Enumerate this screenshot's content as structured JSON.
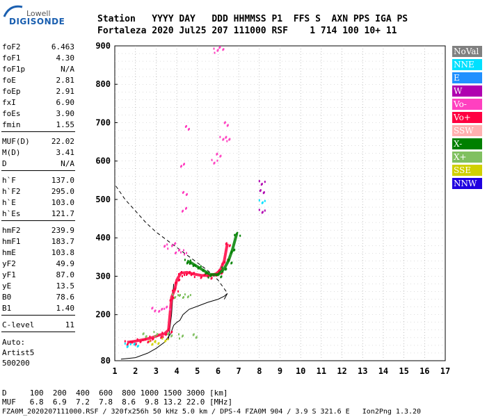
{
  "logo": {
    "brand": "Lowell",
    "product": "DIGISONDE"
  },
  "header": {
    "line1": "Station   YYYY DAY   DDD HHMMSS P1  FFS S  AXN PPS IGA PS",
    "line2": "Fortaleza 2020 Jul25 207 111000 RSF    1 714 100 10+ 11"
  },
  "params": [
    {
      "label": "foF2",
      "value": "6.463"
    },
    {
      "label": "foF1",
      "value": "4.30"
    },
    {
      "label": "foF1p",
      "value": "N/A"
    },
    {
      "label": "foE",
      "value": "2.81"
    },
    {
      "label": "foEp",
      "value": "2.91"
    },
    {
      "label": "fxI",
      "value": "6.90"
    },
    {
      "label": "foEs",
      "value": "3.90"
    },
    {
      "label": "fmin",
      "value": "1.55"
    },
    {
      "label": "MUF(D)",
      "value": "22.02"
    },
    {
      "label": "M(D)",
      "value": "3.41"
    },
    {
      "label": "D",
      "value": "N/A"
    },
    {
      "label": "h`F",
      "value": "137.0"
    },
    {
      "label": "h`F2",
      "value": "295.0"
    },
    {
      "label": "h`E",
      "value": "103.0"
    },
    {
      "label": "h`Es",
      "value": "121.7"
    },
    {
      "label": "hmF2",
      "value": "239.9"
    },
    {
      "label": "hmF1",
      "value": "183.7"
    },
    {
      "label": "hmE",
      "value": "103.8"
    },
    {
      "label": "yF2",
      "value": "49.9"
    },
    {
      "label": "yF1",
      "value": "87.0"
    },
    {
      "label": "yE",
      "value": "13.5"
    },
    {
      "label": "B0",
      "value": "78.6"
    },
    {
      "label": "B1",
      "value": "1.40"
    },
    {
      "label": "C-level",
      "value": "11"
    }
  ],
  "auto": {
    "line1": "Auto:",
    "line2": "Artist5",
    "line3": "500200"
  },
  "legend": [
    {
      "label": "NoVal",
      "color": "#808080",
      "text": "#ffffff"
    },
    {
      "label": "NNE",
      "color": "#00e0ff",
      "text": "#ffffff"
    },
    {
      "label": "E",
      "color": "#2090ff",
      "text": "#ffffff"
    },
    {
      "label": "W",
      "color": "#b000b0",
      "text": "#ffffff"
    },
    {
      "label": "Vo-",
      "color": "#ff40c0",
      "text": "#ffffff"
    },
    {
      "label": "Vo+",
      "color": "#ff0040",
      "text": "#ffffff"
    },
    {
      "label": "SSW",
      "color": "#ffb0b0",
      "text": "#ffffff"
    },
    {
      "label": "X-",
      "color": "#008000",
      "text": "#ffffff"
    },
    {
      "label": "X+",
      "color": "#80c060",
      "text": "#ffffff"
    },
    {
      "label": "SSE",
      "color": "#d0d000",
      "text": "#ffffff"
    },
    {
      "label": "NNW",
      "color": "#2000e0",
      "text": "#ffffff"
    }
  ],
  "bottom": {
    "line1": "D     100  200  400  600  800 1000 1500 3000 [km]",
    "line2": "MUF   6.8  6.9  7.2  7.8  8.6  9.8 13.2 22.0 [MHz]",
    "line3": "FZA0M_2020207111000.RSF / 320fx256h 50 kHz 5.0 km / DPS-4 FZA0M 904 / 3.9 S 321.6 E   Ion2Png 1.3.20"
  },
  "chart_data": {
    "type": "scatter",
    "x": {
      "min": 1,
      "max": 17,
      "ticks": [
        1,
        2,
        3,
        4,
        5,
        6,
        7,
        8,
        9,
        10,
        11,
        12,
        13,
        14,
        15,
        16,
        17
      ],
      "label": ""
    },
    "y": {
      "min": 80,
      "max": 900,
      "ticks": [
        80,
        200,
        300,
        400,
        500,
        600,
        700,
        800,
        900
      ],
      "label": ""
    },
    "grid": true,
    "profile_solid": [
      [
        1.3,
        84
      ],
      [
        2.0,
        88
      ],
      [
        2.6,
        100
      ],
      [
        3.0,
        112
      ],
      [
        3.4,
        128
      ],
      [
        3.7,
        150
      ],
      [
        3.85,
        172
      ],
      [
        4.0,
        180
      ],
      [
        4.15,
        185
      ],
      [
        4.3,
        200
      ],
      [
        4.6,
        214
      ],
      [
        5.0,
        222
      ],
      [
        5.5,
        232
      ],
      [
        6.0,
        240
      ],
      [
        6.3,
        248
      ],
      [
        6.45,
        255
      ],
      [
        6.3,
        240
      ]
    ],
    "profile_solid_upper": [
      [
        3.6,
        135
      ],
      [
        3.75,
        200
      ],
      [
        3.85,
        280
      ]
    ],
    "profile_dashed": [
      [
        1.05,
        535
      ],
      [
        1.5,
        500
      ],
      [
        2.0,
        470
      ],
      [
        2.5,
        440
      ],
      [
        3.0,
        415
      ],
      [
        3.5,
        395
      ],
      [
        4.0,
        375
      ],
      [
        4.5,
        355
      ],
      [
        5.0,
        335
      ],
      [
        5.5,
        315
      ],
      [
        6.0,
        290
      ],
      [
        6.4,
        260
      ]
    ],
    "traces": [
      {
        "name": "Vo+",
        "color": "#ff0040",
        "points": [
          [
            1.6,
            128
          ],
          [
            1.9,
            130
          ],
          [
            2.2,
            133
          ],
          [
            2.5,
            136
          ],
          [
            2.8,
            140
          ],
          [
            3.1,
            146
          ],
          [
            3.4,
            150
          ],
          [
            3.6,
            160
          ],
          [
            3.75,
            245
          ],
          [
            3.9,
            265
          ],
          [
            4.0,
            290
          ],
          [
            4.2,
            308
          ],
          [
            4.5,
            310
          ],
          [
            4.8,
            306
          ],
          [
            5.2,
            302
          ],
          [
            5.6,
            302
          ],
          [
            5.9,
            306
          ],
          [
            6.1,
            315
          ],
          [
            6.3,
            340
          ],
          [
            6.45,
            385
          ]
        ]
      },
      {
        "name": "X-",
        "color": "#008000",
        "points": [
          [
            4.5,
            340
          ],
          [
            4.7,
            335
          ],
          [
            5.0,
            325
          ],
          [
            5.3,
            315
          ],
          [
            5.6,
            305
          ],
          [
            6.0,
            304
          ],
          [
            6.3,
            320
          ],
          [
            6.5,
            340
          ],
          [
            6.7,
            370
          ],
          [
            6.9,
            410
          ]
        ]
      },
      {
        "name": "X+",
        "color": "#80c060",
        "points": [
          [
            3.9,
            250
          ],
          [
            4.2,
            252
          ],
          [
            4.5,
            250
          ],
          [
            2.4,
            150
          ],
          [
            3.0,
            152
          ],
          [
            3.6,
            150
          ],
          [
            4.2,
            146
          ],
          [
            4.8,
            146
          ]
        ]
      },
      {
        "name": "Vo-",
        "color": "#ff40c0",
        "points": [
          [
            5.8,
            600
          ],
          [
            6.0,
            620
          ],
          [
            6.2,
            660
          ],
          [
            6.35,
            700
          ],
          [
            6.5,
            660
          ],
          [
            6.1,
            896
          ],
          [
            5.9,
            890
          ],
          [
            2.8,
            215
          ],
          [
            3.2,
            216
          ],
          [
            3.5,
            218
          ],
          [
            4.0,
            368
          ],
          [
            4.3,
            365
          ],
          [
            3.8,
            385
          ],
          [
            3.5,
            380
          ],
          [
            4.3,
            475
          ],
          [
            4.4,
            520
          ],
          [
            4.2,
            590
          ],
          [
            4.5,
            690
          ]
        ]
      },
      {
        "name": "SSE",
        "color": "#d0d000",
        "points": [
          [
            2.8,
            128
          ],
          [
            3.0,
            132
          ],
          [
            3.4,
            135
          ]
        ]
      },
      {
        "name": "NNE",
        "color": "#00e0ff",
        "points": [
          [
            1.6,
            122
          ],
          [
            2.0,
            125
          ],
          [
            8.1,
            495
          ]
        ]
      },
      {
        "name": "W",
        "color": "#b000b0",
        "points": [
          [
            8.1,
            545
          ],
          [
            8.1,
            525
          ],
          [
            8.1,
            470
          ]
        ]
      }
    ]
  }
}
